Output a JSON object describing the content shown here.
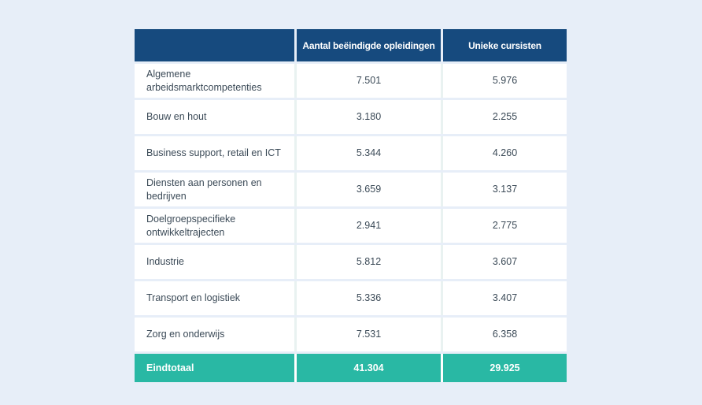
{
  "page": {
    "background_color": "#e7eef8"
  },
  "table": {
    "colors": {
      "header_bg": "#164a7e",
      "header_text": "#ffffff",
      "body_bg": "#ffffff",
      "body_text": "#3b4a57",
      "footer_bg": "#29b8a4",
      "footer_text": "#ffffff"
    },
    "columns": [
      "",
      "Aantal beëindigde opleidingen",
      "Unieke cursisten"
    ],
    "rows": [
      {
        "label": "Algemene arbeidsmarktcompetenties",
        "ended_trainings": "7.501",
        "unique_students": "5.976"
      },
      {
        "label": "Bouw en hout",
        "ended_trainings": "3.180",
        "unique_students": "2.255"
      },
      {
        "label": "Business support, retail en ICT",
        "ended_trainings": "5.344",
        "unique_students": "4.260"
      },
      {
        "label": "Diensten aan personen en bedrijven",
        "ended_trainings": "3.659",
        "unique_students": "3.137"
      },
      {
        "label": "Doelgroepspecifieke ontwikkeltrajecten",
        "ended_trainings": "2.941",
        "unique_students": "2.775"
      },
      {
        "label": "Industrie",
        "ended_trainings": "5.812",
        "unique_students": "3.607"
      },
      {
        "label": "Transport en logistiek",
        "ended_trainings": "5.336",
        "unique_students": "3.407"
      },
      {
        "label": "Zorg en onderwijs",
        "ended_trainings": "7.531",
        "unique_students": "6.358"
      }
    ],
    "footer": {
      "label": "Eindtotaal",
      "ended_trainings": "41.304",
      "unique_students": "29.925"
    }
  },
  "chart_data": {
    "type": "table",
    "title": "",
    "columns": [
      "",
      "Aantal beëindigde opleidingen",
      "Unieke cursisten"
    ],
    "categories": [
      "Algemene arbeidsmarktcompetenties",
      "Bouw en hout",
      "Business support, retail en ICT",
      "Diensten aan personen en bedrijven",
      "Doelgroepspecifieke ontwikkeltrajecten",
      "Industrie",
      "Transport en logistiek",
      "Zorg en onderwijs"
    ],
    "series": [
      {
        "name": "Aantal beëindigde opleidingen",
        "values": [
          7501,
          3180,
          5344,
          3659,
          2941,
          5812,
          5336,
          7531
        ],
        "total": 41304
      },
      {
        "name": "Unieke cursisten",
        "values": [
          5976,
          2255,
          4260,
          3137,
          2775,
          3607,
          3407,
          6358
        ],
        "total": 29925
      }
    ],
    "footer_label": "Eindtotaal"
  }
}
